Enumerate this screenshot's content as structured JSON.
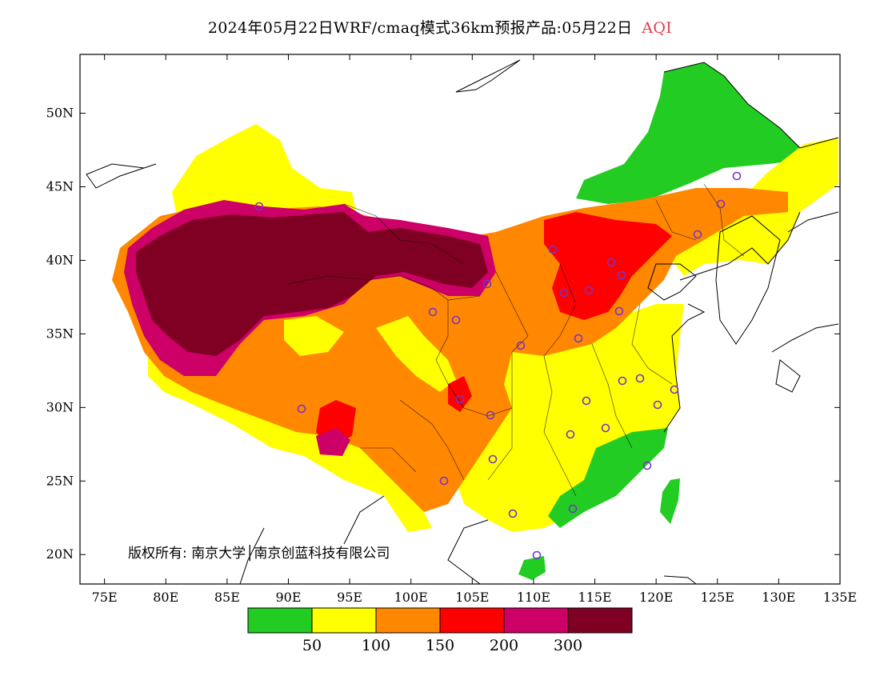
{
  "title": {
    "main": "2024年05月22日WRF/cmaq模式36km预报产品:05月22日",
    "variable": "AQI"
  },
  "axes": {
    "lat_labels": [
      "50N",
      "45N",
      "40N",
      "35N",
      "30N",
      "25N",
      "20N"
    ],
    "lon_labels": [
      "75E",
      "80E",
      "85E",
      "90E",
      "95E",
      "100E",
      "105E",
      "110E",
      "115E",
      "120E",
      "125E",
      "130E",
      "135E"
    ],
    "lon_range": [
      73,
      135
    ],
    "lat_range": [
      18,
      54
    ]
  },
  "legend": {
    "colors": [
      "#22cc22",
      "#ffff00",
      "#ff8800",
      "#ff0000",
      "#cc0066",
      "#7f0022"
    ],
    "labels": [
      "50",
      "100",
      "150",
      "200",
      "300"
    ]
  },
  "copyright": "版权所有: 南京大学│南京创蓝科技有限公司",
  "colors": {
    "marker": "#7733cc",
    "aqi_text": "#e0404a"
  }
}
